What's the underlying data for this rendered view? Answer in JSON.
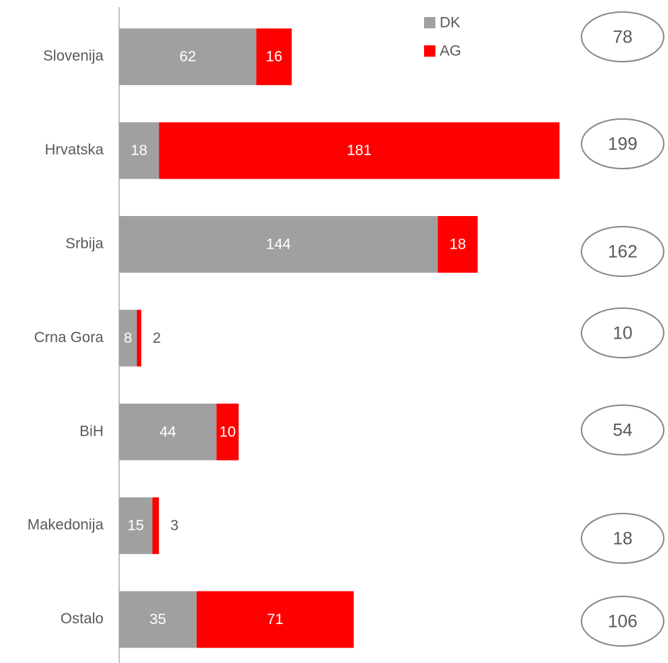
{
  "chart_data": {
    "type": "stacked-bar-horizontal",
    "categories": [
      "Slovenija",
      "Hrvatska",
      "Srbija",
      "Crna Gora",
      "BiH",
      "Makedonija",
      "Ostalo"
    ],
    "series": [
      {
        "name": "DK",
        "color": "#a0a0a0",
        "values": [
          62,
          18,
          144,
          8,
          44,
          15,
          35
        ]
      },
      {
        "name": "AG",
        "color": "#ff0000",
        "values": [
          16,
          181,
          18,
          2,
          10,
          3,
          71
        ]
      }
    ],
    "totals": [
      78,
      199,
      162,
      10,
      54,
      18,
      106
    ],
    "xlim": [
      0,
      240
    ],
    "legend": "top"
  }
}
